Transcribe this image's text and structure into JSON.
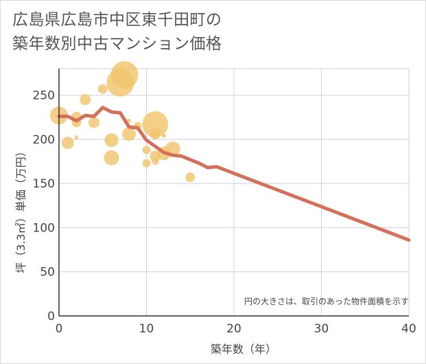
{
  "title_line1": "広島県広島市中区東千田町の",
  "title_line2": "築年数別中古マンション価格",
  "colors": {
    "bubble": "#f2c46d",
    "line": "#d4705a",
    "grid": "#c8d2e0",
    "axis": "#333333"
  },
  "chart_data": {
    "type": "scatter",
    "xlabel": "築年数（年）",
    "ylabel": "坪（3.3㎡）単価（万円）",
    "xlim": [
      0,
      40
    ],
    "ylim": [
      0,
      280
    ],
    "xticks": [
      0,
      10,
      20,
      30,
      40
    ],
    "yticks": [
      0,
      50,
      100,
      150,
      200,
      250
    ],
    "grid": true,
    "note": "円の大きさは、取引のあった物件面積を示す",
    "bubbles": [
      {
        "x": 0,
        "y": 227,
        "s": 13
      },
      {
        "x": 1,
        "y": 196,
        "s": 9
      },
      {
        "x": 2,
        "y": 225,
        "s": 8
      },
      {
        "x": 2,
        "y": 219,
        "s": 7
      },
      {
        "x": 2,
        "y": 202,
        "s": 3
      },
      {
        "x": 3,
        "y": 245,
        "s": 8
      },
      {
        "x": 4,
        "y": 219,
        "s": 8
      },
      {
        "x": 5,
        "y": 257,
        "s": 7
      },
      {
        "x": 6,
        "y": 199,
        "s": 10
      },
      {
        "x": 6,
        "y": 179,
        "s": 11
      },
      {
        "x": 7,
        "y": 264,
        "s": 20
      },
      {
        "x": 7.5,
        "y": 273,
        "s": 20
      },
      {
        "x": 7.8,
        "y": 267,
        "s": 3
      },
      {
        "x": 8,
        "y": 221,
        "s": 3
      },
      {
        "x": 8,
        "y": 206,
        "s": 10
      },
      {
        "x": 9,
        "y": 215,
        "s": 6
      },
      {
        "x": 10,
        "y": 188,
        "s": 6
      },
      {
        "x": 10,
        "y": 173,
        "s": 6
      },
      {
        "x": 11,
        "y": 217,
        "s": 19
      },
      {
        "x": 11,
        "y": 206,
        "s": 8
      },
      {
        "x": 11,
        "y": 181,
        "s": 8
      },
      {
        "x": 11,
        "y": 175,
        "s": 5
      },
      {
        "x": 12,
        "y": 204,
        "s": 3
      },
      {
        "x": 12,
        "y": 184,
        "s": 10
      },
      {
        "x": 13,
        "y": 189,
        "s": 11
      },
      {
        "x": 15,
        "y": 157,
        "s": 7
      }
    ],
    "series": [
      {
        "x": [
          0,
          1,
          2,
          3,
          4,
          5,
          6,
          7,
          8,
          9,
          10,
          11,
          12,
          13,
          14,
          15,
          16,
          17,
          18,
          40
        ],
        "y": [
          226,
          226,
          221,
          227,
          226,
          236,
          231,
          230,
          214,
          213,
          199,
          192,
          185,
          182,
          181,
          177,
          173,
          168,
          169,
          86
        ]
      }
    ]
  }
}
